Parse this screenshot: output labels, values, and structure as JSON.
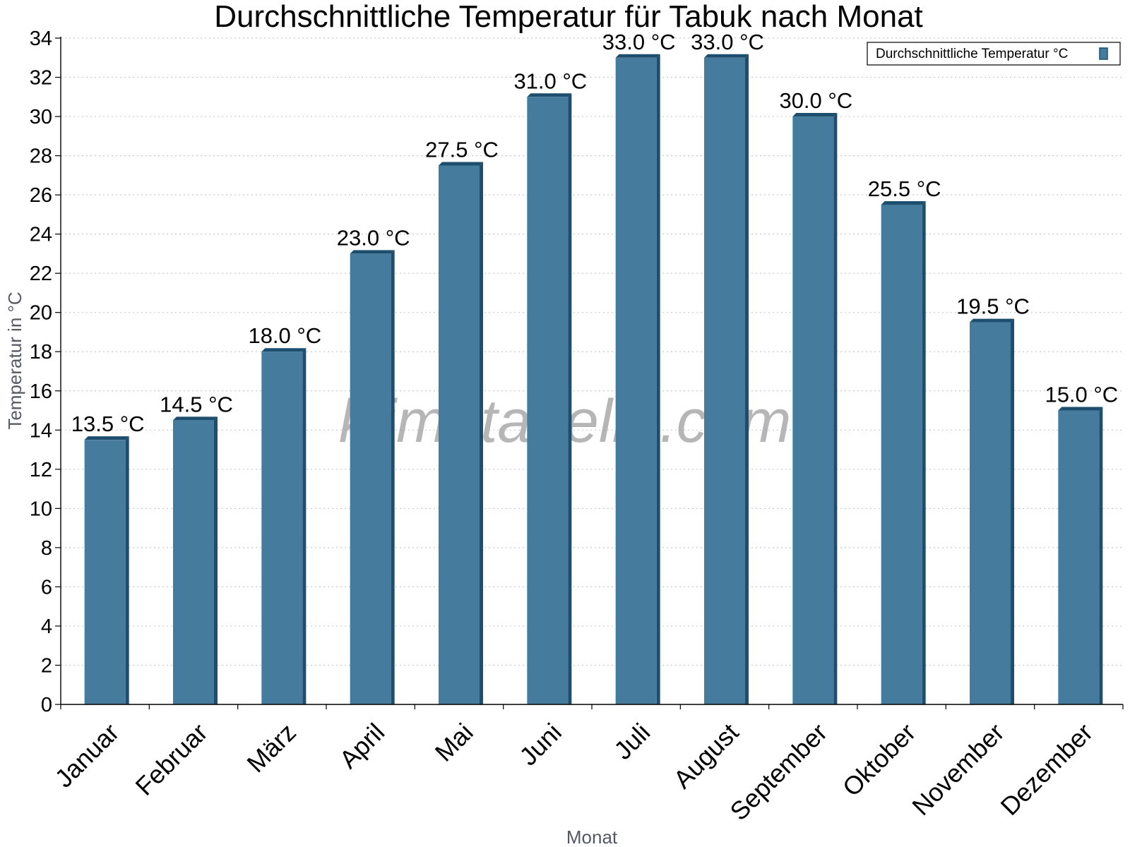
{
  "chart_data": {
    "type": "bar",
    "title": "Durchschnittliche Temperatur für Tabuk nach Monat",
    "xlabel": "Monat",
    "ylabel": "Temperatur in °C",
    "categories": [
      "Januar",
      "Februar",
      "März",
      "April",
      "Mai",
      "Juni",
      "Juli",
      "August",
      "September",
      "Oktober",
      "November",
      "Dezember"
    ],
    "series": [
      {
        "name": "Durchschnittliche Temperatur °C",
        "values": [
          13.5,
          14.5,
          18.0,
          23.0,
          27.5,
          31.0,
          33.0,
          33.0,
          30.0,
          25.5,
          19.5,
          15.0
        ],
        "color": "#457b9d",
        "shade_color": "#1d4e6e"
      }
    ],
    "value_labels": [
      "13.5 °C",
      "14.5 °C",
      "18.0 °C",
      "23.0 °C",
      "27.5 °C",
      "31.0 °C",
      "33.0 °C",
      "33.0 °C",
      "30.0 °C",
      "25.5 °C",
      "19.5 °C",
      "15.0 °C"
    ],
    "ylim": [
      0,
      34
    ],
    "yticks": [
      "0",
      "2",
      "4",
      "6",
      "8",
      "10",
      "12",
      "14",
      "16",
      "18",
      "20",
      "22",
      "24",
      "26",
      "28",
      "30",
      "32",
      "34"
    ],
    "grid": true,
    "legend_position": "top-right",
    "watermark": "klimatabelle.com"
  }
}
